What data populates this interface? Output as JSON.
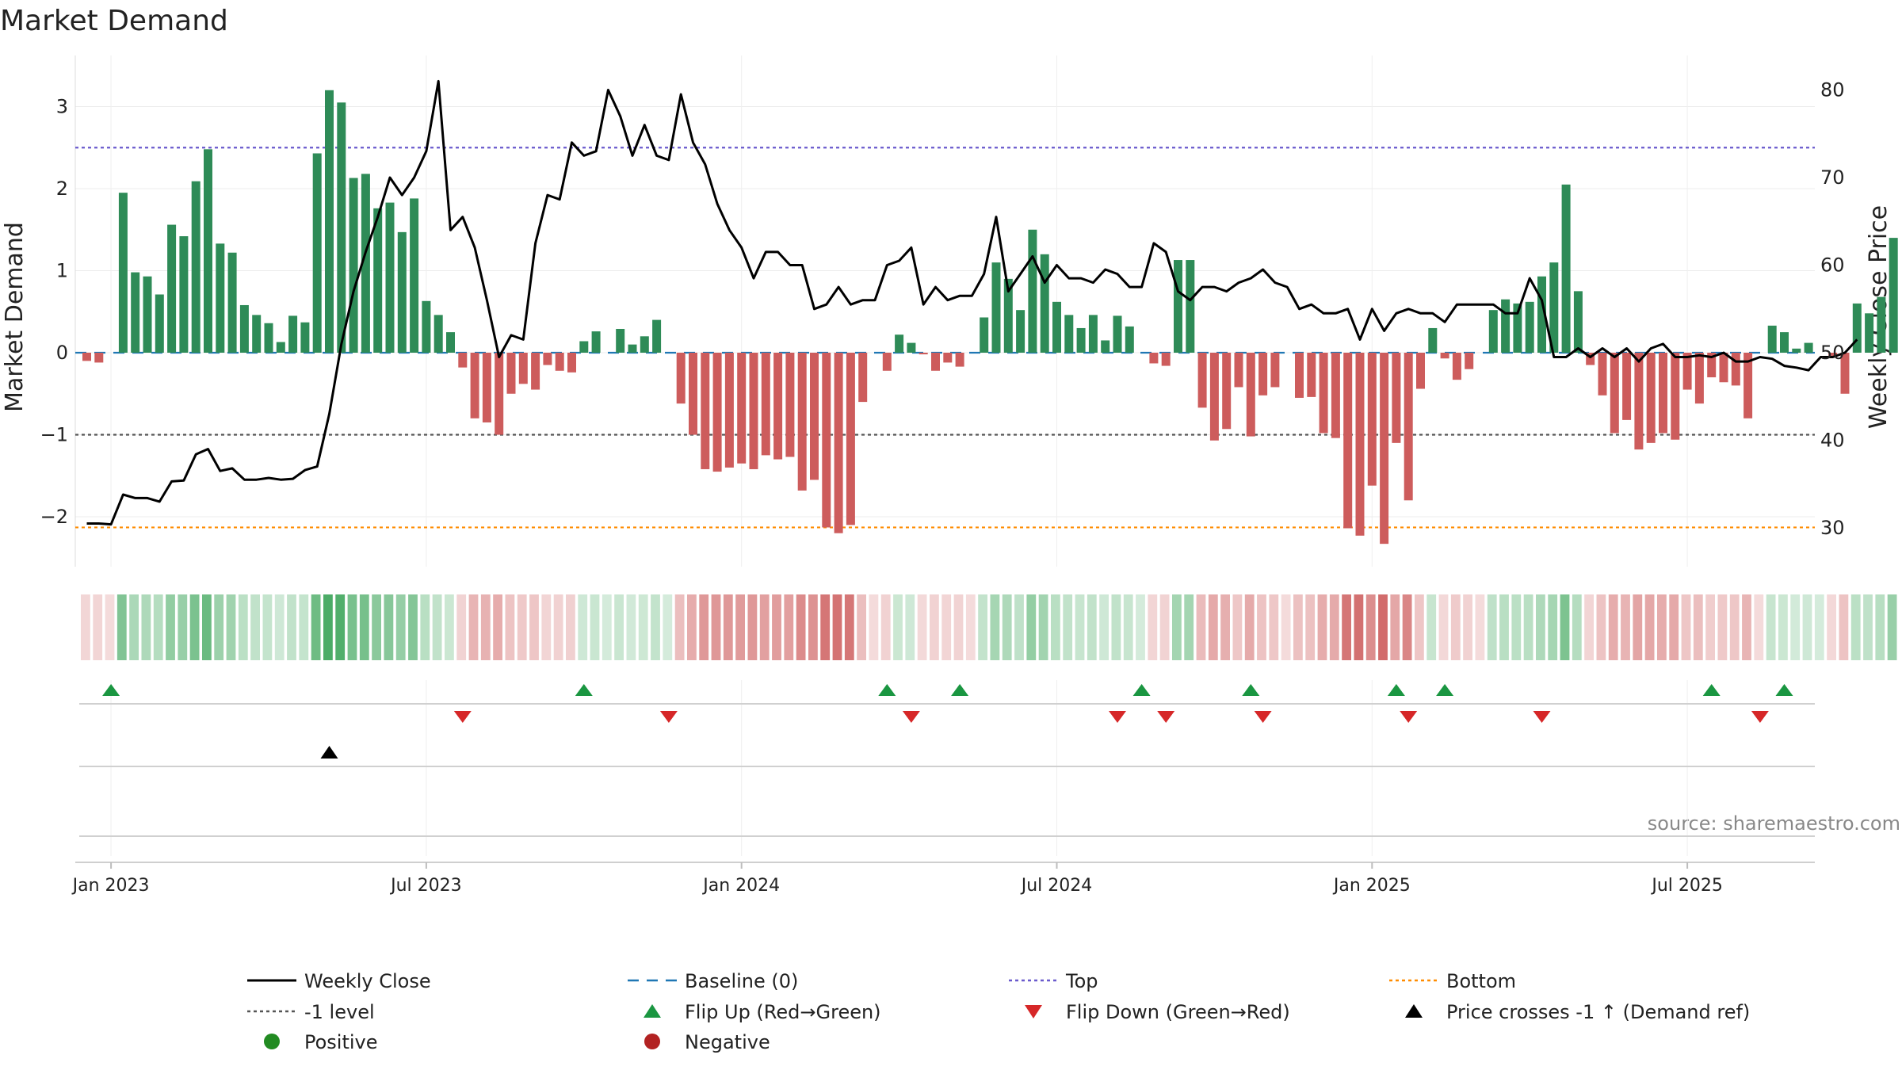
{
  "chart_data": {
    "type": "bar+line",
    "title": "Market Demand",
    "ylabel_left": "Market Demand",
    "ylabel_right": "Weekly Close Price",
    "ylim_left": [
      -2.6,
      3.5
    ],
    "ylim_right": [
      24,
      82
    ],
    "left_ticks": [
      "3",
      "2",
      "1",
      "0",
      "−1",
      "−2"
    ],
    "left_tick_values": [
      3,
      2,
      1,
      0,
      -1,
      -2
    ],
    "right_ticks": [
      "80",
      "70",
      "60",
      "50",
      "40",
      "30"
    ],
    "right_tick_values": [
      80,
      70,
      60,
      50,
      40,
      30
    ],
    "date_labels": [
      "Jan 2023",
      "Jul 2023",
      "Jan 2024",
      "Jul 2024",
      "Jan 2025",
      "Jul 2025"
    ],
    "date_label_weeks": [
      2,
      28,
      54,
      80,
      106,
      132
    ],
    "levels": {
      "top": 2.5,
      "minus1": -1,
      "bottom": -2.13,
      "baseline": 0
    },
    "colors": {
      "pos": "#2e8b57",
      "neg": "#cd5c5c",
      "close": "#000000",
      "baseline": "#1f77b4",
      "top": "#6a5acd",
      "minus1": "#555555",
      "bottom": "#ff8c00",
      "up": "#1a9641",
      "down": "#d62728"
    },
    "demand": [
      -0.1,
      -0.12,
      0,
      1.95,
      0.98,
      0.93,
      0.71,
      1.56,
      1.42,
      2.09,
      2.48,
      1.33,
      1.22,
      0.58,
      0.46,
      0.36,
      0.13,
      0.45,
      0.37,
      2.43,
      3.2,
      3.05,
      2.13,
      2.18,
      1.76,
      1.83,
      1.47,
      1.88,
      0.63,
      0.46,
      0.25,
      -0.18,
      -0.8,
      -0.85,
      -1.0,
      -0.5,
      -0.38,
      -0.45,
      -0.15,
      -0.22,
      -0.24,
      0.14,
      0.26,
      0,
      0.29,
      0.1,
      0.2,
      0.4,
      0,
      -0.62,
      -1.0,
      -1.42,
      -1.45,
      -1.4,
      -1.35,
      -1.42,
      -1.25,
      -1.3,
      -1.27,
      -1.68,
      -1.55,
      -2.13,
      -2.2,
      -2.1,
      -0.6,
      0,
      -0.22,
      0.22,
      0.12,
      -0.02,
      -0.22,
      -0.12,
      -0.17,
      0,
      0.43,
      1.1,
      0.9,
      0.52,
      1.5,
      1.2,
      0.62,
      0.46,
      0.3,
      0.46,
      0.15,
      0.45,
      0.32,
      0,
      -0.13,
      -0.16,
      1.13,
      1.13,
      -0.67,
      -1.07,
      -0.93,
      -0.42,
      -1.02,
      -0.52,
      -0.42,
      0,
      -0.55,
      -0.54,
      -0.98,
      -1.04,
      -2.14,
      -2.23,
      -1.62,
      -2.33,
      -1.1,
      -1.8,
      -0.44,
      0.3,
      -0.07,
      -0.33,
      -0.2,
      0,
      0.52,
      0.65,
      0.6,
      0.62,
      0.93,
      1.1,
      2.05,
      0.75,
      -0.15,
      -0.52,
      -0.98,
      -0.82,
      -1.18,
      -1.1,
      -0.98,
      -1.06,
      -0.45,
      -0.62,
      -0.3,
      -0.36,
      -0.4,
      -0.8,
      0,
      0.33,
      0.25,
      0.05,
      0.12,
      0,
      -0.06,
      -0.5,
      0.6,
      0.48,
      0.68,
      1.4
    ],
    "close": [
      30.5,
      30.5,
      30.4,
      33.8,
      33.4,
      33.4,
      33.0,
      35.3,
      35.4,
      38.4,
      39.0,
      36.5,
      36.8,
      35.5,
      35.5,
      35.7,
      35.5,
      35.6,
      36.6,
      37.0,
      43.0,
      51.0,
      57.0,
      61.5,
      65.5,
      70.0,
      68.0,
      70.0,
      73.0,
      81.0,
      64.0,
      65.5,
      62.0,
      56.0,
      49.5,
      52.0,
      51.5,
      62.5,
      68.0,
      67.5,
      74.0,
      72.5,
      73.0,
      80.0,
      77.0,
      72.5,
      76.0,
      72.5,
      72.0,
      79.5,
      74.0,
      71.5,
      67.0,
      64.0,
      62.0,
      58.5,
      61.5,
      61.5,
      60.0,
      60.0,
      55.0,
      55.5,
      57.5,
      55.5,
      56.0,
      56.0,
      60.0,
      60.5,
      62.0,
      55.5,
      57.5,
      56.0,
      56.5,
      56.5,
      59.0,
      65.5,
      57.0,
      59.0,
      61.0,
      58.0,
      60.0,
      58.5,
      58.5,
      58.0,
      59.5,
      59.0,
      57.5,
      57.5,
      62.5,
      61.5,
      57.0,
      56.0,
      57.5,
      57.5,
      57.0,
      58.0,
      58.5,
      59.5,
      58.0,
      57.5,
      55.0,
      55.5,
      54.5,
      54.5,
      55.0,
      51.5,
      55.0,
      52.5,
      54.5,
      55.0,
      54.5,
      54.5,
      53.5,
      55.5,
      55.5,
      55.5,
      55.5,
      54.5,
      54.5,
      58.5,
      56.0,
      49.5,
      49.5,
      50.5,
      49.5,
      50.5,
      49.5,
      50.5,
      49.0,
      50.5,
      51.0,
      49.5,
      49.5,
      49.7,
      49.5,
      50.0,
      49.0,
      49.0,
      49.5,
      49.3,
      48.5,
      48.3,
      48.0,
      49.5,
      49.5,
      50.0,
      51.5
    ],
    "flip_up_weeks": [
      2,
      41,
      66,
      72,
      87,
      96,
      108,
      112,
      134,
      140
    ],
    "flip_down_weeks": [
      31,
      48,
      68,
      85,
      89,
      97,
      109,
      120,
      138
    ],
    "cross_weeks": [
      20
    ],
    "source": "source: sharemaestro.com",
    "legend": [
      {
        "key": "close",
        "label": "Weekly Close"
      },
      {
        "key": "baseline",
        "label": "Baseline (0)"
      },
      {
        "key": "top",
        "label": "Top"
      },
      {
        "key": "bottom",
        "label": "Bottom"
      },
      {
        "key": "minus1",
        "label": "-1 level"
      },
      {
        "key": "up",
        "label": "Flip Up (Red→Green)"
      },
      {
        "key": "down",
        "label": "Flip Down (Green→Red)"
      },
      {
        "key": "cross",
        "label": "Price crosses -1 ↑ (Demand ref)"
      },
      {
        "key": "pos",
        "label": "Positive"
      },
      {
        "key": "neg",
        "label": "Negative"
      }
    ]
  }
}
